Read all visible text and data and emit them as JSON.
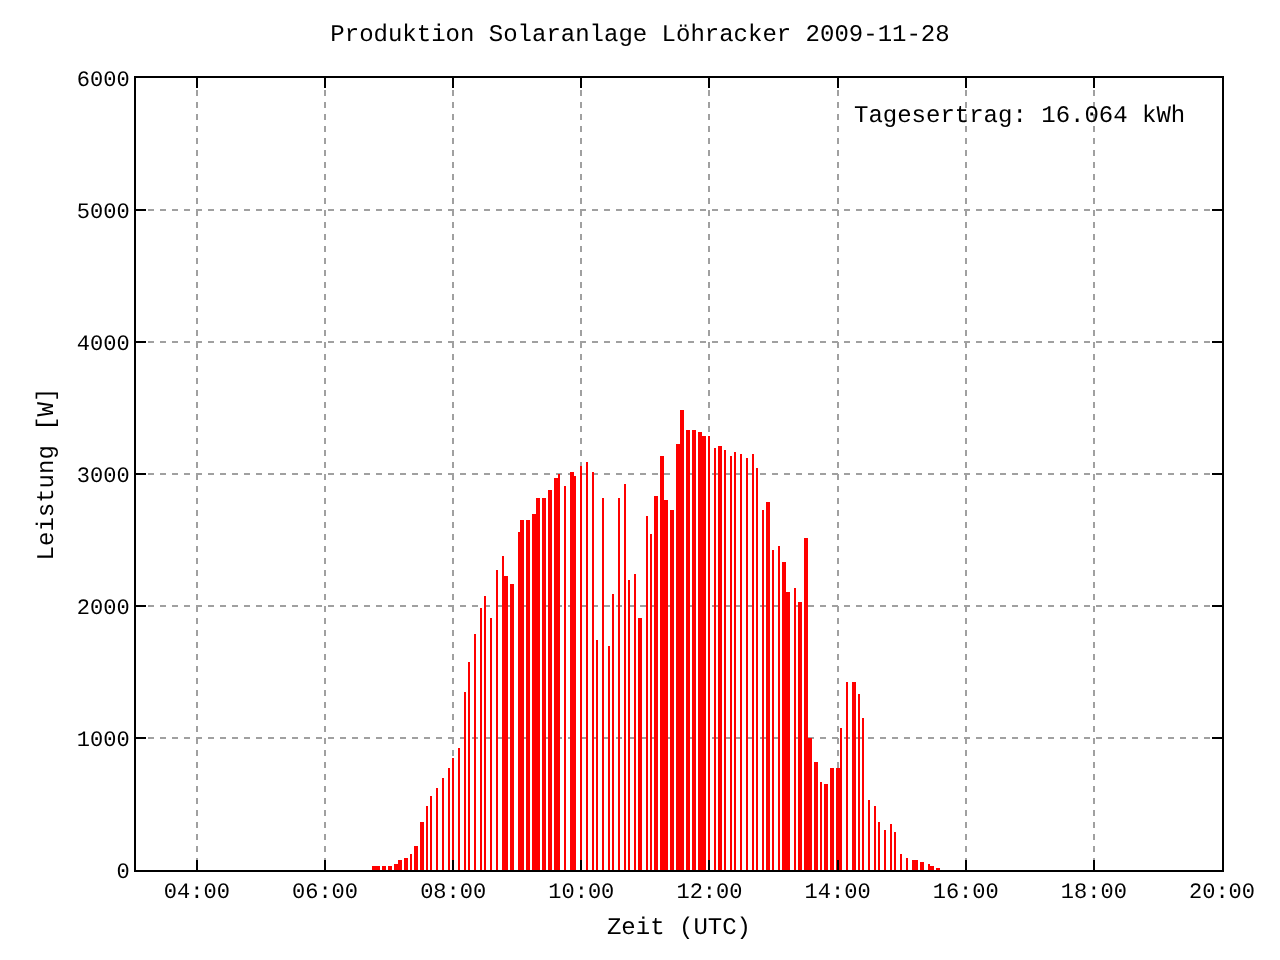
{
  "chart_data": {
    "type": "bar",
    "title": "Produktion Solaranlage Löhracker 2009-11-28",
    "xlabel": "Zeit (UTC)",
    "ylabel": "Leistung [W]",
    "annotations": [
      "Tagesertrag: 16.064 kWh"
    ],
    "x": [
      6.77,
      6.83,
      6.92,
      7.02,
      7.11,
      7.17,
      7.26,
      7.35,
      7.42,
      7.51,
      7.6,
      7.66,
      7.75,
      7.85,
      7.94,
      8.0,
      8.09,
      8.19,
      8.25,
      8.34,
      8.43,
      8.49,
      8.59,
      8.68,
      8.77,
      8.83,
      8.92,
      9.02,
      9.08,
      9.17,
      9.26,
      9.32,
      9.42,
      9.51,
      9.6,
      9.66,
      9.75,
      9.85,
      9.91,
      10.0,
      10.09,
      10.19,
      10.25,
      10.34,
      10.43,
      10.49,
      10.59,
      10.68,
      10.74,
      10.83,
      10.92,
      11.02,
      11.08,
      11.17,
      11.26,
      11.32,
      11.42,
      11.51,
      11.57,
      11.66,
      11.76,
      11.85,
      11.91,
      12.0,
      12.09,
      12.16,
      12.25,
      12.34,
      12.4,
      12.49,
      12.59,
      12.68,
      12.74,
      12.83,
      12.92,
      12.99,
      13.08,
      13.17,
      13.23,
      13.33,
      13.42,
      13.51,
      13.57,
      13.66,
      13.75,
      13.82,
      13.91,
      14.0,
      14.06,
      14.15,
      14.25,
      14.34,
      14.4,
      14.49,
      14.59,
      14.65,
      14.74,
      14.83,
      14.89,
      14.99,
      15.08,
      15.17,
      15.23,
      15.32,
      15.42,
      15.48,
      15.57
    ],
    "series": [
      {
        "color": "#ff0000",
        "values": [
          20,
          20,
          30,
          35,
          50,
          75,
          95,
          125,
          185,
          360,
          480,
          555,
          625,
          700,
          775,
          850,
          925,
          1345,
          1580,
          1790,
          1990,
          2075,
          1910,
          2270,
          2375,
          2225,
          2165,
          2565,
          2655,
          2655,
          2700,
          2820,
          2820,
          2880,
          2970,
          3000,
          2910,
          3015,
          2985,
          3060,
          3090,
          3015,
          1745,
          2820,
          1700,
          2090,
          2820,
          2925,
          2195,
          2240,
          1910,
          2685,
          2550,
          2835,
          3135,
          2805,
          2730,
          3225,
          3480,
          3330,
          3330,
          3315,
          3285,
          3285,
          3195,
          3210,
          3180,
          3135,
          3165,
          3150,
          3120,
          3150,
          3045,
          2730,
          2790,
          2420,
          2450,
          2330,
          2105,
          2135,
          2030,
          2510,
          1000,
          820,
          670,
          655,
          775,
          775,
          1075,
          1420,
          1420,
          1330,
          1150,
          525,
          480,
          360,
          300,
          345,
          285,
          120,
          90,
          75,
          75,
          60,
          45,
          30,
          15
        ]
      }
    ],
    "xlim": [
      3.05,
      20
    ],
    "xticks": [
      {
        "value": 4,
        "label": "04:00"
      },
      {
        "value": 6,
        "label": "06:00"
      },
      {
        "value": 8,
        "label": "08:00"
      },
      {
        "value": 10,
        "label": "10:00"
      },
      {
        "value": 12,
        "label": "12:00"
      },
      {
        "value": 14,
        "label": "14:00"
      },
      {
        "value": 16,
        "label": "16:00"
      },
      {
        "value": 18,
        "label": "18:00"
      },
      {
        "value": 20,
        "label": "20:00"
      }
    ],
    "ylim": [
      0,
      6000
    ],
    "yticks": [
      0,
      1000,
      2000,
      3000,
      4000,
      5000,
      6000
    ],
    "grid": true
  }
}
